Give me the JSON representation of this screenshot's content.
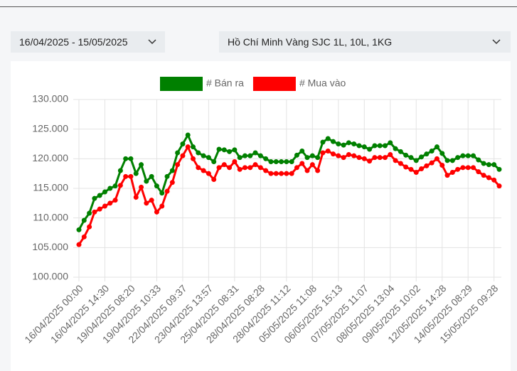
{
  "date_range": "16/04/2025 - 15/05/2025",
  "product": "Hồ Chí Minh Vàng SJC 1L, 10L, 1KG",
  "chart_data": {
    "type": "line",
    "categories": [
      "16/04/2025 00:00",
      null,
      null,
      null,
      null,
      "16/04/2025 14:30",
      null,
      null,
      null,
      null,
      "19/04/2025 08:20",
      null,
      null,
      null,
      null,
      "19/04/2025 10:33",
      null,
      null,
      null,
      null,
      "22/04/2025 09:37",
      null,
      null,
      null,
      null,
      "23/04/2025 13:57",
      null,
      null,
      null,
      null,
      "25/04/2025 08:31",
      null,
      null,
      null,
      null,
      "28/04/2025 08:28",
      null,
      null,
      null,
      null,
      "28/04/2025 11:12",
      null,
      null,
      null,
      null,
      "05/05/2025 11:08",
      null,
      null,
      null,
      null,
      "06/05/2025 15:13",
      null,
      null,
      null,
      null,
      "07/05/2025 11:07",
      null,
      null,
      null,
      null,
      "08/05/2025 13:04",
      null,
      null,
      null,
      null,
      "09/05/2025 10:02",
      null,
      null,
      null,
      null,
      "12/05/2025 14:28",
      null,
      null,
      null,
      null,
      "14/05/2025 08:29",
      null,
      null,
      null,
      null,
      "15/05/2025 09:28",
      null
    ],
    "series": [
      {
        "name": "# Bán ra",
        "color": "#008000",
        "values": [
          108000,
          109600,
          110800,
          113300,
          113800,
          114400,
          115000,
          115400,
          118000,
          120000,
          120000,
          117500,
          119000,
          116200,
          117000,
          115400,
          114200,
          117000,
          118000,
          121000,
          122500,
          124000,
          122000,
          121000,
          120500,
          120200,
          119500,
          121600,
          121500,
          121200,
          121500,
          120200,
          120500,
          120500,
          121000,
          120500,
          120000,
          119500,
          119500,
          119500,
          119500,
          119500,
          120600,
          121300,
          120200,
          120500,
          120200,
          122800,
          123400,
          122900,
          122500,
          122300,
          122700,
          122500,
          122200,
          122000,
          121600,
          122200,
          122200,
          122200,
          122700,
          121700,
          121200,
          120600,
          120200,
          119700,
          120300,
          120800,
          121300,
          122000,
          120900,
          119700,
          119700,
          120200,
          120500,
          120500,
          120500,
          119800,
          119200,
          119000,
          119000,
          118200
        ]
      },
      {
        "name": "# Mua vào",
        "color": "#ff0000",
        "values": [
          105500,
          106800,
          108500,
          111000,
          111500,
          112000,
          112500,
          113000,
          115500,
          117000,
          117000,
          113500,
          115200,
          112500,
          113000,
          111000,
          112000,
          114500,
          116000,
          119000,
          120500,
          122000,
          120000,
          118500,
          118000,
          117500,
          116500,
          118500,
          119000,
          118500,
          119500,
          118200,
          118500,
          118500,
          119000,
          118500,
          118000,
          117500,
          117500,
          117500,
          117500,
          117500,
          118500,
          119200,
          118000,
          119000,
          118000,
          121000,
          121300,
          120800,
          120500,
          120200,
          120700,
          120500,
          120200,
          120000,
          119600,
          120200,
          120200,
          120200,
          120700,
          119700,
          119200,
          118600,
          118200,
          117700,
          118300,
          118800,
          119300,
          120000,
          118900,
          117200,
          117700,
          118200,
          118500,
          118500,
          118500,
          117800,
          117200,
          116800,
          116400,
          115400
        ]
      }
    ],
    "ylim": [
      100000,
      130000
    ],
    "yticks": [
      {
        "value": 100000,
        "label": "100.000"
      },
      {
        "value": 105000,
        "label": "105.000"
      },
      {
        "value": 110000,
        "label": "110.000"
      },
      {
        "value": 115000,
        "label": "115.000"
      },
      {
        "value": 120000,
        "label": "120.000"
      },
      {
        "value": 125000,
        "label": "125.000"
      },
      {
        "value": 130000,
        "label": "130.000"
      }
    ],
    "grid": true
  }
}
